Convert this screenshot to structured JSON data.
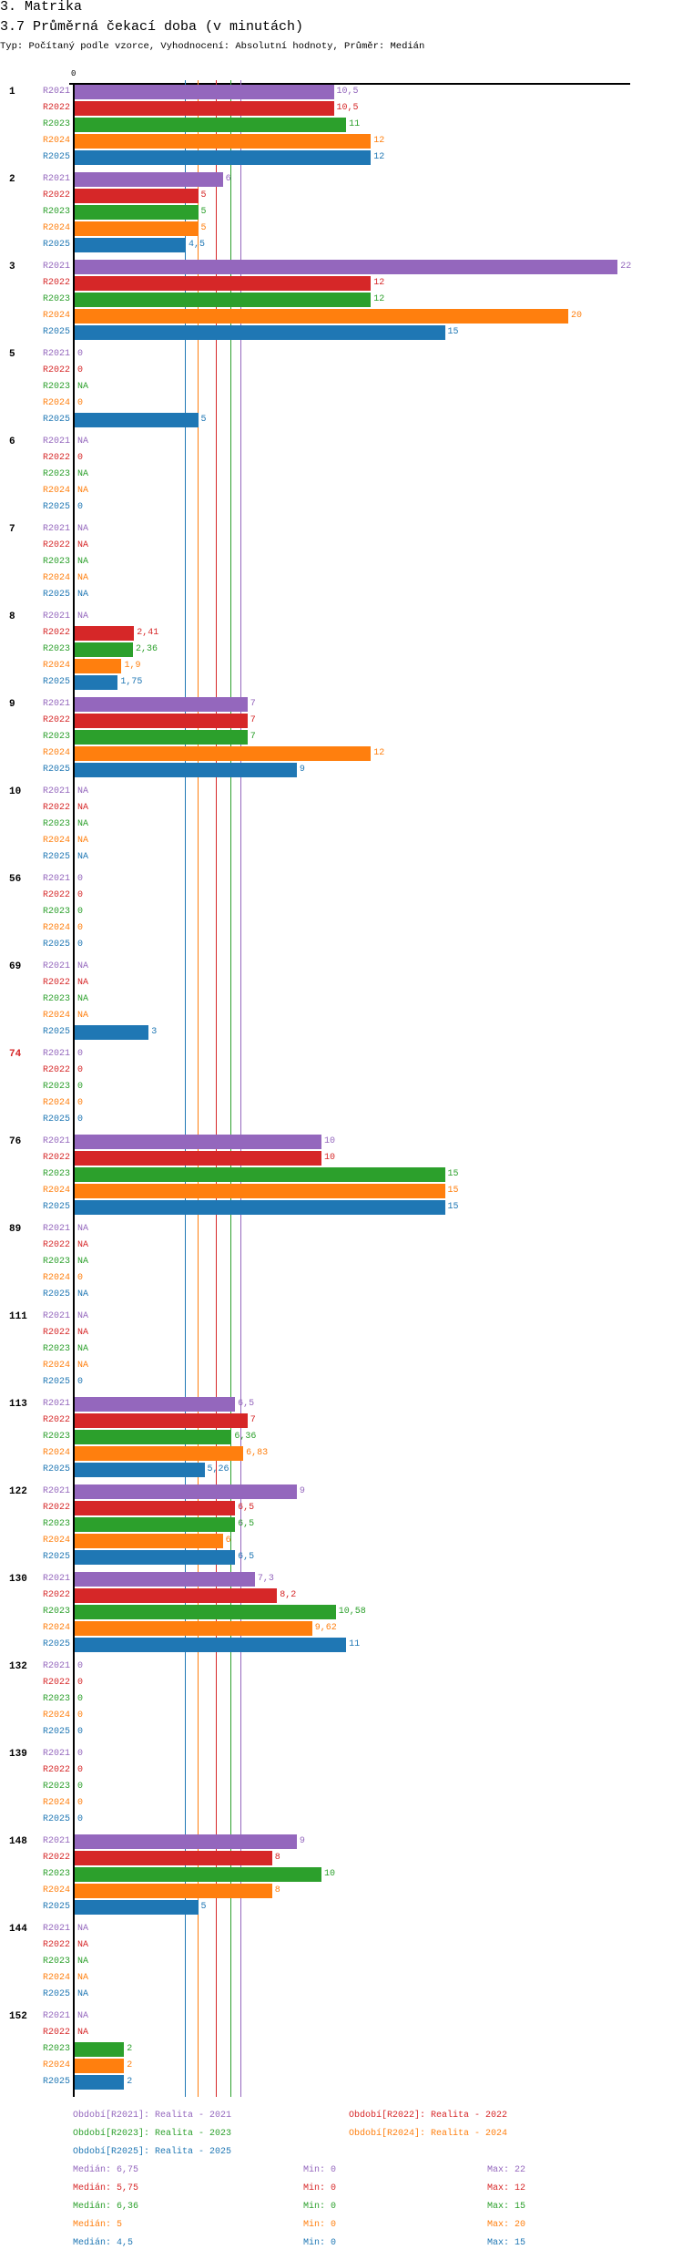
{
  "header": {
    "section": "3. Matrika",
    "title": "3.7 Průměrná čekací doba (v minutách)",
    "subtitle": "Typ: Počítaný podle vzorce, Vyhodnocení: Absolutní hodnoty, Průměr: Medián"
  },
  "chart_data": {
    "type": "bar",
    "orientation": "horizontal",
    "title": "3.7 Průměrná čekací doba (v minutách)",
    "axis_zero_label": "0",
    "xlim": [
      0,
      22.5
    ],
    "series": [
      {
        "key": "R2021",
        "color": "#9467bd"
      },
      {
        "key": "R2022",
        "color": "#d62728"
      },
      {
        "key": "R2023",
        "color": "#2ca02c"
      },
      {
        "key": "R2024",
        "color": "#ff7f0e"
      },
      {
        "key": "R2025",
        "color": "#1f77b4"
      }
    ],
    "groups": [
      {
        "label": "1",
        "highlight": false,
        "values": [
          "10,5",
          "10,5",
          "11",
          "12",
          "12"
        ]
      },
      {
        "label": "2",
        "highlight": false,
        "values": [
          "6",
          "5",
          "5",
          "5",
          "4,5"
        ]
      },
      {
        "label": "3",
        "highlight": false,
        "values": [
          "22",
          "12",
          "12",
          "20",
          "15"
        ]
      },
      {
        "label": "5",
        "highlight": false,
        "values": [
          "0",
          "0",
          "NA",
          "0",
          "5"
        ]
      },
      {
        "label": "6",
        "highlight": false,
        "values": [
          "NA",
          "0",
          "NA",
          "NA",
          "0"
        ]
      },
      {
        "label": "7",
        "highlight": false,
        "values": [
          "NA",
          "NA",
          "NA",
          "NA",
          "NA"
        ]
      },
      {
        "label": "8",
        "highlight": false,
        "values": [
          "NA",
          "2,41",
          "2,36",
          "1,9",
          "1,75"
        ]
      },
      {
        "label": "9",
        "highlight": false,
        "values": [
          "7",
          "7",
          "7",
          "12",
          "9"
        ]
      },
      {
        "label": "10",
        "highlight": false,
        "values": [
          "NA",
          "NA",
          "NA",
          "NA",
          "NA"
        ]
      },
      {
        "label": "56",
        "highlight": false,
        "values": [
          "0",
          "0",
          "0",
          "0",
          "0"
        ]
      },
      {
        "label": "69",
        "highlight": false,
        "values": [
          "NA",
          "NA",
          "NA",
          "NA",
          "3"
        ]
      },
      {
        "label": "74",
        "highlight": true,
        "values": [
          "0",
          "0",
          "0",
          "0",
          "0"
        ]
      },
      {
        "label": "76",
        "highlight": false,
        "values": [
          "10",
          "10",
          "15",
          "15",
          "15"
        ]
      },
      {
        "label": "89",
        "highlight": false,
        "values": [
          "NA",
          "NA",
          "NA",
          "0",
          "NA"
        ]
      },
      {
        "label": "111",
        "highlight": false,
        "values": [
          "NA",
          "NA",
          "NA",
          "NA",
          "0"
        ]
      },
      {
        "label": "113",
        "highlight": false,
        "values": [
          "6,5",
          "7",
          "6,36",
          "6,83",
          "5,26"
        ]
      },
      {
        "label": "122",
        "highlight": false,
        "values": [
          "9",
          "6,5",
          "6,5",
          "6",
          "6,5"
        ]
      },
      {
        "label": "130",
        "highlight": false,
        "values": [
          "7,3",
          "8,2",
          "10,58",
          "9,62",
          "11"
        ]
      },
      {
        "label": "132",
        "highlight": false,
        "values": [
          "0",
          "0",
          "0",
          "0",
          "0"
        ]
      },
      {
        "label": "139",
        "highlight": false,
        "values": [
          "0",
          "0",
          "0",
          "0",
          "0"
        ]
      },
      {
        "label": "148",
        "highlight": false,
        "values": [
          "9",
          "8",
          "10",
          "8",
          "5"
        ]
      },
      {
        "label": "144",
        "highlight": false,
        "values": [
          "NA",
          "NA",
          "NA",
          "NA",
          "NA"
        ]
      },
      {
        "label": "152",
        "highlight": false,
        "values": [
          "NA",
          "NA",
          "2",
          "2",
          "2"
        ]
      }
    ],
    "median_lines": [
      6.75,
      5.75,
      6.36,
      5,
      4.5
    ],
    "legend": [
      "Období[R2021]: Realita - 2021",
      "Období[R2022]: Realita - 2022",
      "Období[R2023]: Realita - 2023",
      "Období[R2024]: Realita - 2024",
      "Období[R2025]: Realita - 2025"
    ],
    "stats": [
      {
        "median": "Medián: 6,75",
        "min": "Min: 0",
        "max": "Max: 22"
      },
      {
        "median": "Medián: 5,75",
        "min": "Min: 0",
        "max": "Max: 12"
      },
      {
        "median": "Medián: 6,36",
        "min": "Min: 0",
        "max": "Max: 15"
      },
      {
        "median": "Medián: 5",
        "min": "Min: 0",
        "max": "Max: 20"
      },
      {
        "median": "Medián: 4,5",
        "min": "Min: 0",
        "max": "Max: 15"
      }
    ],
    "highlight_color": "#d62728"
  }
}
